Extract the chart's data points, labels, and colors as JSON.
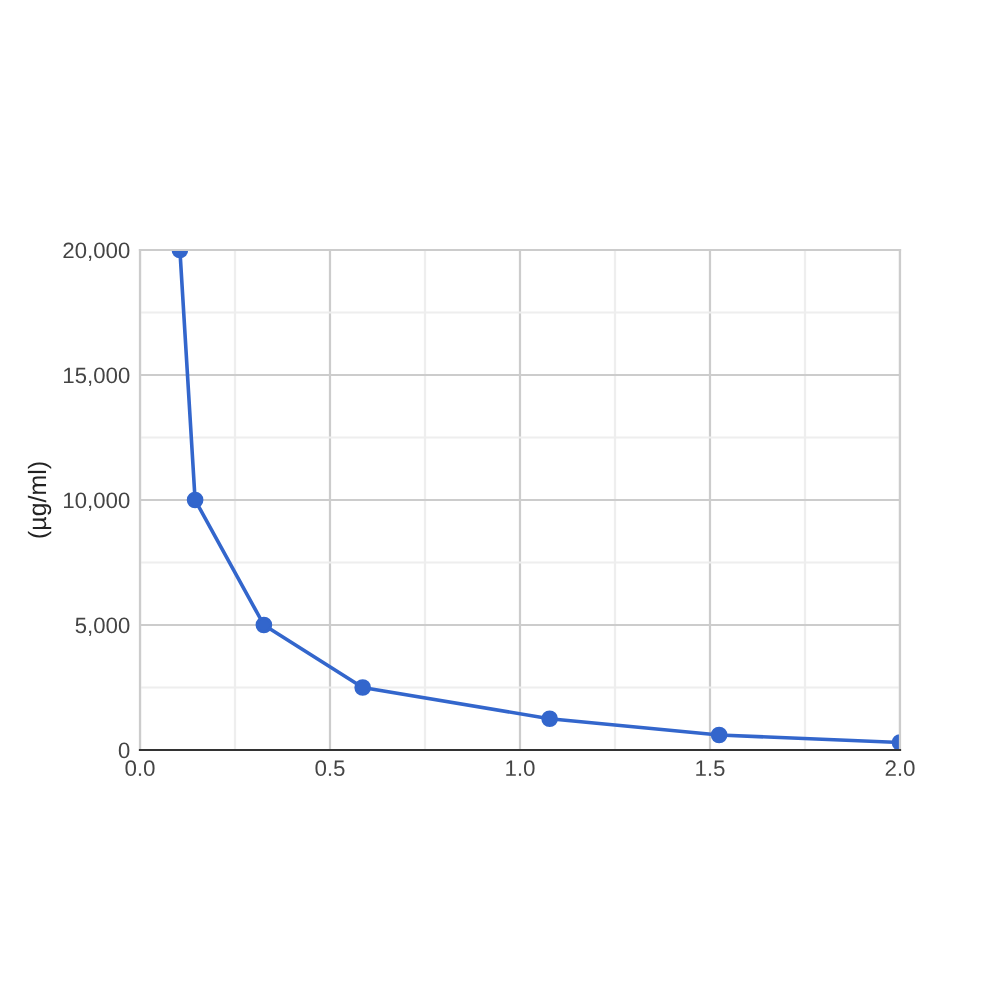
{
  "chart_data": {
    "type": "line",
    "ylabel": "(µg/ml)",
    "x": [
      0.105,
      0.145,
      0.326,
      0.586,
      1.078,
      1.524,
      2.0
    ],
    "series": [
      {
        "color": "#3366cc",
        "values": [
          20000,
          10000,
          5000,
          2500,
          1250,
          600,
          300
        ]
      }
    ],
    "xlim": [
      0,
      2.0
    ],
    "xticks": [
      {
        "value": 0,
        "label": "0.0"
      },
      {
        "value": 0.5,
        "label": "0.5"
      },
      {
        "value": 1.0,
        "label": "1.0"
      },
      {
        "value": 1.5,
        "label": "1.5"
      },
      {
        "value": 2.0,
        "label": "2.0"
      }
    ],
    "ylim": [
      0,
      20000
    ],
    "yticks": [
      {
        "value": 0,
        "label": "0"
      },
      {
        "value": 5000,
        "label": "5,000"
      },
      {
        "value": 10000,
        "label": "10,000"
      },
      {
        "value": 15000,
        "label": "15,000"
      },
      {
        "value": 20000,
        "label": "20,000"
      }
    ],
    "grid": true,
    "marker": "circle",
    "line_style": "solid",
    "legend": false
  }
}
